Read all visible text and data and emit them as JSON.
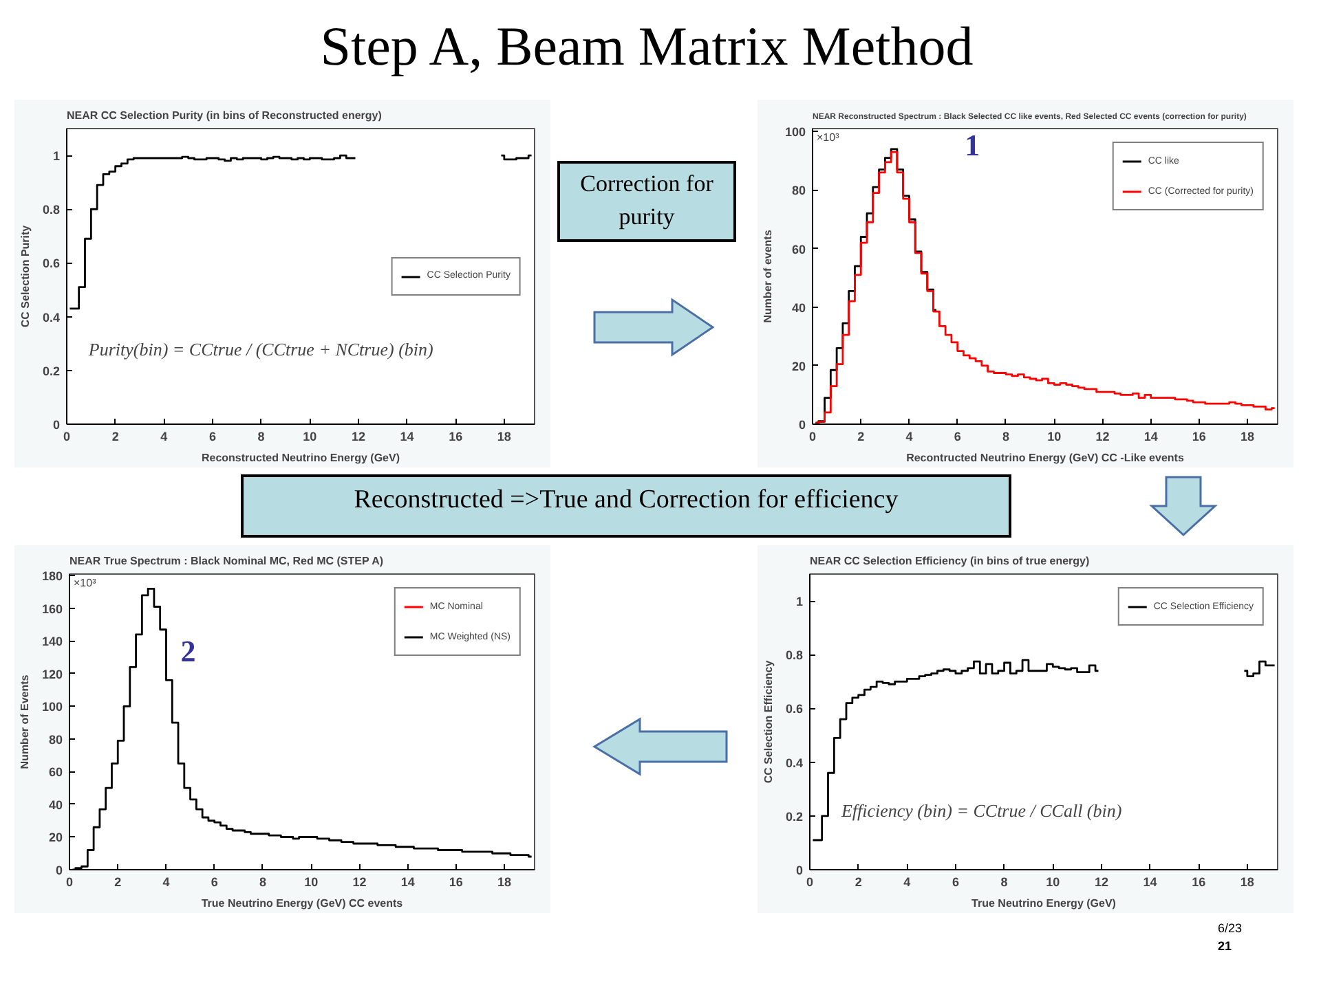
{
  "chart_data": [
    {
      "type": "step",
      "title": "NEAR CC Selection Purity (in bins of Reconstructed energy)",
      "xlabel": "Reconstructed Neutrino Energy (GeV)",
      "ylabel": "CC Selection Purity",
      "xlim": [
        0,
        19.25
      ],
      "ylim": [
        0,
        1.1
      ],
      "xticks": [
        0,
        2,
        4,
        6,
        8,
        10,
        12,
        14,
        16,
        18
      ],
      "yticks": [
        0,
        0.2,
        0.4,
        0.6,
        0.8,
        1
      ],
      "legend": "right",
      "annotations": [
        "Step A, Beam Matrix Method",
        "Purity(bin) = CCtrue / (CCtrue + NCtrue) (bin)",
        "Correction for purity"
      ],
      "x": [
        0.125,
        0.375,
        0.625,
        0.875,
        1.125,
        1.375,
        1.625,
        1.875,
        2.125,
        2.375,
        2.625,
        2.875,
        3.125,
        3.375,
        3.625,
        3.875,
        4.125,
        4.375,
        4.625,
        4.875,
        5.125,
        5.375,
        5.625,
        5.875,
        6.125,
        6.375,
        6.625,
        6.875,
        7.125,
        7.375,
        7.625,
        7.875,
        8.125,
        8.375,
        8.625,
        8.875,
        9.125,
        9.375,
        9.625,
        9.875,
        10.125,
        10.375,
        10.625,
        10.875,
        11.125,
        11.375,
        11.625,
        11.875,
        12.125,
        12.375,
        12.625,
        12.875,
        13.125,
        13.375,
        13.625,
        13.875,
        14.125,
        14.375,
        14.625,
        14.875,
        15.125,
        15.375,
        15.625,
        15.875,
        16.125,
        16.375,
        16.625,
        16.875,
        17.125,
        17.375,
        17.625,
        17.875,
        18.125,
        18.375,
        18.625,
        18.875,
        19.125
      ],
      "series": [
        {
          "name": "CC Selection Purity",
          "color": "#000000",
          "values": [
            0.43,
            0.43,
            0.51,
            0.69,
            0.8,
            0.89,
            0.93,
            0.94,
            0.96,
            0.97,
            0.985,
            0.99,
            0.99,
            0.99,
            0.99,
            0.99,
            0.99,
            0.99,
            0.99,
            0.995,
            0.99,
            0.985,
            0.985,
            0.99,
            0.99,
            0.985,
            0.98,
            0.99,
            0.985,
            0.99,
            0.99,
            0.99,
            0.985,
            0.99,
            0.995,
            0.99,
            0.99,
            0.985,
            0.99,
            0.985,
            0.99,
            0.99,
            0.985,
            0.985,
            0.99,
            1.0,
            0.99,
            0.99,
            null,
            null,
            null,
            null,
            null,
            null,
            null,
            null,
            null,
            null,
            null,
            null,
            null,
            null,
            null,
            null,
            null,
            null,
            null,
            null,
            null,
            null,
            null,
            1.0,
            0.985,
            0.985,
            0.99,
            0.99,
            1.0
          ]
        }
      ]
    },
    {
      "type": "step",
      "title": "NEAR Reconstructed Spectrum : Black Selected CC like events, Red Selected CC events (correction for purity)",
      "xlabel": "Recontructed Neutrino Energy (GeV) CC -Like events",
      "ylabel": "Number of events",
      "xlim": [
        0,
        19.25
      ],
      "ylim": [
        0,
        101
      ],
      "xticks": [
        0,
        2,
        4,
        6,
        8,
        10,
        12,
        14,
        16,
        18
      ],
      "yticks": [
        0,
        20,
        40,
        60,
        80,
        100
      ],
      "legend": "top right",
      "annotations": [
        "×10³",
        "1"
      ],
      "x": [
        0.125,
        0.375,
        0.625,
        0.875,
        1.125,
        1.375,
        1.625,
        1.875,
        2.125,
        2.375,
        2.625,
        2.875,
        3.125,
        3.375,
        3.625,
        3.875,
        4.125,
        4.375,
        4.625,
        4.875,
        5.125,
        5.375,
        5.625,
        5.875,
        6.125,
        6.375,
        6.625,
        6.875,
        7.125,
        7.375,
        7.625,
        7.875,
        8.125,
        8.375,
        8.625,
        8.875,
        9.125,
        9.375,
        9.625,
        9.875,
        10.125,
        10.375,
        10.625,
        10.875,
        11.125,
        11.375,
        11.625,
        11.875,
        12.125,
        12.375,
        12.625,
        12.875,
        13.125,
        13.375,
        13.625,
        13.875,
        14.125,
        14.375,
        14.625,
        14.875,
        15.125,
        15.375,
        15.625,
        15.875,
        16.125,
        16.375,
        16.625,
        16.875,
        17.125,
        17.375,
        17.625,
        17.875,
        18.125,
        18.375,
        18.625,
        18.875,
        19.125
      ],
      "series": [
        {
          "name": "CC like",
          "color": "#000000",
          "values": [
            0.5,
            1,
            9,
            18.5,
            26,
            34.5,
            45.5,
            54,
            64,
            72,
            81,
            87,
            91,
            94,
            87,
            78,
            70,
            59,
            52,
            46,
            39,
            null,
            null,
            null,
            null,
            null,
            null,
            null,
            null,
            null,
            null,
            null,
            null,
            null,
            null,
            null,
            null,
            null,
            null,
            null,
            null,
            null,
            null,
            null,
            null,
            null,
            null,
            null,
            null,
            null,
            null,
            null,
            null,
            null,
            null,
            null,
            null,
            null,
            null,
            null,
            null,
            null,
            null,
            null,
            null,
            null,
            null,
            null,
            null,
            null,
            null,
            null,
            null,
            null,
            null,
            null,
            null
          ]
        },
        {
          "name": "CC (Corrected for purity)",
          "color": "#ff0000",
          "values": [
            0.3,
            0.8,
            4,
            13,
            20.5,
            30.5,
            42,
            51,
            62,
            69,
            79,
            86,
            89.5,
            93,
            86,
            77,
            69,
            58.5,
            51.5,
            45.5,
            38.5,
            33.5,
            30.5,
            28,
            25,
            23.5,
            22.5,
            21.5,
            20,
            18,
            17.5,
            17.5,
            17,
            16.5,
            17,
            16,
            15.5,
            15,
            15.5,
            14,
            13.5,
            14,
            13.5,
            13,
            12.5,
            12,
            12,
            11,
            11,
            11,
            10.5,
            10,
            10,
            10.5,
            9,
            10,
            9,
            9,
            9,
            9,
            8.5,
            8.5,
            8,
            7.5,
            7.5,
            7,
            7,
            7,
            7,
            7.5,
            7,
            6.5,
            6.5,
            6,
            6,
            5,
            5.5
          ]
        }
      ]
    },
    {
      "type": "step",
      "title": "NEAR True Spectrum : Black Nominal MC, Red  MC (STEP A)",
      "xlabel": "True Neutrino Energy (GeV) CC events",
      "ylabel": "Number of Events",
      "xlim": [
        0,
        19.25
      ],
      "ylim": [
        0,
        181
      ],
      "xticks": [
        0,
        2,
        4,
        6,
        8,
        10,
        12,
        14,
        16,
        18
      ],
      "yticks": [
        0,
        20,
        40,
        60,
        80,
        100,
        120,
        140,
        160,
        180
      ],
      "legend": "top right",
      "annotations": [
        "×10³",
        "2"
      ],
      "x": [
        0.125,
        0.375,
        0.625,
        0.875,
        1.125,
        1.375,
        1.625,
        1.875,
        2.125,
        2.375,
        2.625,
        2.875,
        3.125,
        3.375,
        3.625,
        3.875,
        4.125,
        4.375,
        4.625,
        4.875,
        5.125,
        5.375,
        5.625,
        5.875,
        6.125,
        6.375,
        6.625,
        6.875,
        7.125,
        7.375,
        7.625,
        7.875,
        8.125,
        8.375,
        8.625,
        8.875,
        9.125,
        9.375,
        9.625,
        9.875,
        10.125,
        10.375,
        10.625,
        10.875,
        11.125,
        11.375,
        11.625,
        11.875,
        12.125,
        12.375,
        12.625,
        12.875,
        13.125,
        13.375,
        13.625,
        13.875,
        14.125,
        14.375,
        14.625,
        14.875,
        15.125,
        15.375,
        15.625,
        15.875,
        16.125,
        16.375,
        16.625,
        16.875,
        17.125,
        17.375,
        17.625,
        17.875,
        18.125,
        18.375,
        18.625,
        18.875,
        19.125
      ],
      "series": [
        {
          "name": "MC Nominal",
          "color": "#ff0000",
          "values": [
            null,
            null,
            null,
            null,
            null,
            null,
            null,
            null,
            null,
            null,
            null,
            null,
            null,
            null,
            null,
            null,
            null,
            null,
            null,
            null,
            null,
            null,
            null,
            null,
            null,
            null,
            null,
            null,
            null,
            null,
            null,
            null,
            null,
            null,
            null,
            null,
            null,
            null,
            null,
            null,
            null,
            null,
            null,
            null,
            null,
            null,
            null,
            null,
            null,
            null,
            null,
            null,
            null,
            null,
            null,
            null,
            null,
            null,
            null,
            null,
            null,
            null,
            null,
            null,
            null,
            null,
            null,
            null,
            null,
            null,
            null,
            null,
            null,
            null,
            null,
            null,
            null
          ]
        },
        {
          "name": "MC Weighted (NS)",
          "color": "#000000",
          "values": [
            0,
            1,
            2,
            12,
            26,
            37,
            50,
            65,
            79,
            100,
            124,
            144,
            168,
            172,
            161,
            147,
            116,
            90,
            65,
            50,
            43,
            37,
            32,
            30,
            29,
            27,
            25,
            24,
            24,
            23,
            22,
            22,
            22,
            21,
            21,
            20,
            20,
            19,
            20,
            20,
            20,
            19,
            19,
            18,
            18,
            17,
            17,
            16,
            16,
            16,
            16,
            15,
            15,
            15,
            14,
            14,
            14,
            13,
            13,
            13,
            13,
            12,
            12,
            12,
            12,
            11,
            11,
            11,
            11,
            11,
            10,
            10,
            10,
            9,
            9,
            9,
            8
          ]
        }
      ]
    },
    {
      "type": "step",
      "title": "NEAR CC Selection Efficiency (in bins of true energy)",
      "xlabel": "True Neutrino Energy (GeV)",
      "ylabel": "CC Selection Efficiency",
      "xlim": [
        0,
        19.25
      ],
      "ylim": [
        0,
        1.1
      ],
      "xticks": [
        0,
        2,
        4,
        6,
        8,
        10,
        12,
        14,
        16,
        18
      ],
      "yticks": [
        0,
        0.2,
        0.4,
        0.6,
        0.8,
        1
      ],
      "legend": "top right",
      "annotations": [
        "Efficiency (bin) = CCtrue / CCall (bin)",
        "Reconstructed =>True and  Correction for efficiency",
        "6/23",
        "21"
      ],
      "x": [
        0.125,
        0.375,
        0.625,
        0.875,
        1.125,
        1.375,
        1.625,
        1.875,
        2.125,
        2.375,
        2.625,
        2.875,
        3.125,
        3.375,
        3.625,
        3.875,
        4.125,
        4.375,
        4.625,
        4.875,
        5.125,
        5.375,
        5.625,
        5.875,
        6.125,
        6.375,
        6.625,
        6.875,
        7.125,
        7.375,
        7.625,
        7.875,
        8.125,
        8.375,
        8.625,
        8.875,
        9.125,
        9.375,
        9.625,
        9.875,
        10.125,
        10.375,
        10.625,
        10.875,
        11.125,
        11.375,
        11.625,
        11.875,
        12.125,
        12.375,
        12.625,
        12.875,
        13.125,
        13.375,
        13.625,
        13.875,
        14.125,
        14.375,
        14.625,
        14.875,
        15.125,
        15.375,
        15.625,
        15.875,
        16.125,
        16.375,
        16.625,
        16.875,
        17.125,
        17.375,
        17.625,
        17.875,
        18.125,
        18.375,
        18.625,
        18.875,
        19.125
      ],
      "series": [
        {
          "name": "CC Selection Efficiency",
          "color": "#000000",
          "values": [
            0.11,
            0.11,
            0.2,
            0.36,
            0.49,
            0.56,
            0.62,
            0.64,
            0.65,
            0.67,
            0.68,
            0.7,
            0.695,
            0.69,
            0.7,
            0.7,
            0.71,
            0.71,
            0.72,
            0.725,
            0.73,
            0.74,
            0.745,
            0.74,
            0.73,
            0.74,
            0.75,
            0.775,
            0.73,
            0.765,
            0.73,
            0.74,
            0.77,
            0.73,
            0.74,
            0.78,
            0.74,
            0.74,
            0.74,
            0.765,
            0.755,
            0.75,
            0.745,
            0.75,
            0.735,
            0.735,
            0.76,
            0.74,
            null,
            null,
            null,
            null,
            null,
            null,
            null,
            null,
            null,
            null,
            null,
            null,
            null,
            null,
            null,
            null,
            null,
            null,
            null,
            null,
            null,
            null,
            null,
            0.74,
            0.72,
            0.73,
            0.775,
            0.76,
            0.76
          ]
        }
      ]
    }
  ]
}
